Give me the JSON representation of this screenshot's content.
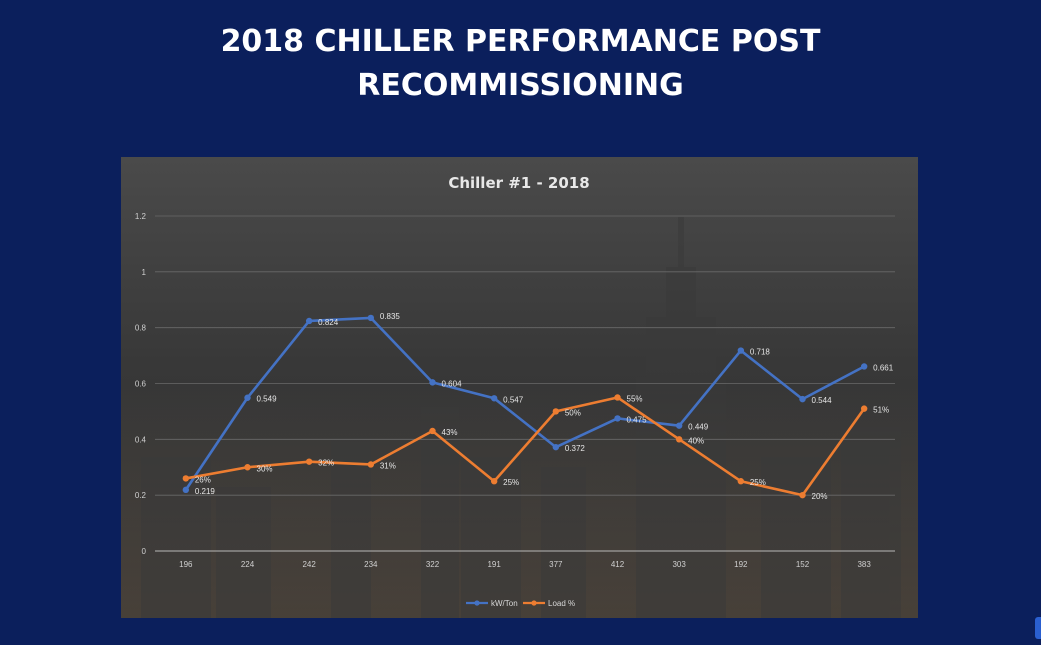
{
  "slide": {
    "title_line1": "2018 CHILLER PERFORMANCE POST",
    "title_line2": "RECOMMISSIONING"
  },
  "colors": {
    "background": "#0b1f5c",
    "kw_series": "#4472c4",
    "load_series": "#ed7d31"
  },
  "chart_data": {
    "type": "line",
    "title": "Chiller #1 - 2018",
    "xlabel": "",
    "ylabel": "",
    "categories": [
      "196",
      "224",
      "242",
      "234",
      "322",
      "191",
      "377",
      "412",
      "303",
      "192",
      "152",
      "383"
    ],
    "ylim": [
      0,
      1.2
    ],
    "yticks": [
      "0",
      "0.2",
      "0.4",
      "0.6",
      "0.8",
      "1",
      "1.2"
    ],
    "grid": true,
    "legend_position": "bottom",
    "series": [
      {
        "name": "kW/Ton",
        "values": [
          0.219,
          0.549,
          0.824,
          0.835,
          0.604,
          0.547,
          0.372,
          0.475,
          0.449,
          0.718,
          0.544,
          0.661
        ],
        "labels": [
          "0.219",
          "0.549",
          "0.824",
          "0.835",
          "0.604",
          "0.547",
          "0.372",
          "0.475",
          "0.449",
          "0.718",
          "0.544",
          "0.661"
        ]
      },
      {
        "name": "Load %",
        "values": [
          0.26,
          0.3,
          0.32,
          0.31,
          0.43,
          0.25,
          0.5,
          0.55,
          0.4,
          0.25,
          0.2,
          0.51
        ],
        "labels": [
          "26%",
          "30%",
          "32%",
          "31%",
          "43%",
          "25%",
          "50%",
          "55%",
          "40%",
          "25%",
          "20%",
          "51%"
        ]
      }
    ]
  }
}
